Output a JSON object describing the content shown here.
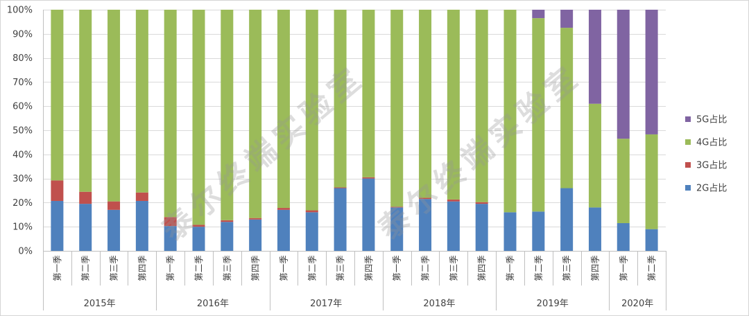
{
  "watermark": {
    "text": "泰尔终端实验室"
  },
  "chart_data": {
    "type": "bar",
    "stacked": "percent",
    "orientation": "vertical",
    "ylim": [
      0,
      100
    ],
    "y_ticks": [
      0,
      10,
      20,
      30,
      40,
      50,
      60,
      70,
      80,
      90,
      100
    ],
    "y_tick_labels": [
      "0%",
      "10%",
      "20%",
      "30%",
      "40%",
      "50%",
      "60%",
      "70%",
      "80%",
      "90%",
      "100%"
    ],
    "groups": [
      {
        "label": "2015年",
        "categories": [
          "第一季",
          "第二季",
          "第三季",
          "第四季"
        ]
      },
      {
        "label": "2016年",
        "categories": [
          "第一季",
          "第二季",
          "第三季",
          "第四季"
        ]
      },
      {
        "label": "2017年",
        "categories": [
          "第一季",
          "第二季",
          "第三季",
          "第四季"
        ]
      },
      {
        "label": "2018年",
        "categories": [
          "第一季",
          "第二季",
          "第三季",
          "第四季"
        ]
      },
      {
        "label": "2019年",
        "categories": [
          "第一季",
          "第二季",
          "第三季",
          "第四季"
        ]
      },
      {
        "label": "2020年",
        "categories": [
          "第一季",
          "第二季"
        ]
      }
    ],
    "series": [
      {
        "name": "2G占比",
        "color": "#4F81BD",
        "values": [
          20.7,
          19.5,
          17.0,
          20.7,
          10.3,
          10.0,
          12.0,
          13.0,
          17.0,
          16.0,
          26.0,
          30.0,
          18.0,
          21.5,
          20.5,
          19.5,
          16.0,
          16.3,
          26.0,
          18.0,
          11.5,
          9.0
        ]
      },
      {
        "name": "3G占比",
        "color": "#C0504D",
        "values": [
          8.5,
          5.0,
          3.5,
          3.5,
          3.7,
          0.8,
          0.7,
          0.6,
          0.8,
          0.8,
          0.3,
          0.5,
          0.3,
          0.5,
          0.8,
          0.7,
          0,
          0,
          0,
          0,
          0,
          0
        ]
      },
      {
        "name": "4G占比",
        "color": "#9BBB59",
        "values": [
          70.8,
          75.5,
          79.5,
          75.8,
          86.0,
          89.2,
          87.3,
          86.4,
          82.2,
          83.2,
          73.7,
          69.5,
          81.7,
          78.0,
          78.7,
          79.8,
          84.0,
          80.2,
          66.5,
          43.0,
          35.0,
          39.3
        ]
      },
      {
        "name": "5G占比",
        "color": "#8064A2",
        "values": [
          0,
          0,
          0,
          0,
          0,
          0,
          0,
          0,
          0,
          0,
          0,
          0,
          0,
          0,
          0,
          0,
          0,
          3.5,
          7.5,
          39.0,
          53.5,
          51.7
        ]
      }
    ],
    "grid": "horizontal",
    "legend": "right"
  }
}
